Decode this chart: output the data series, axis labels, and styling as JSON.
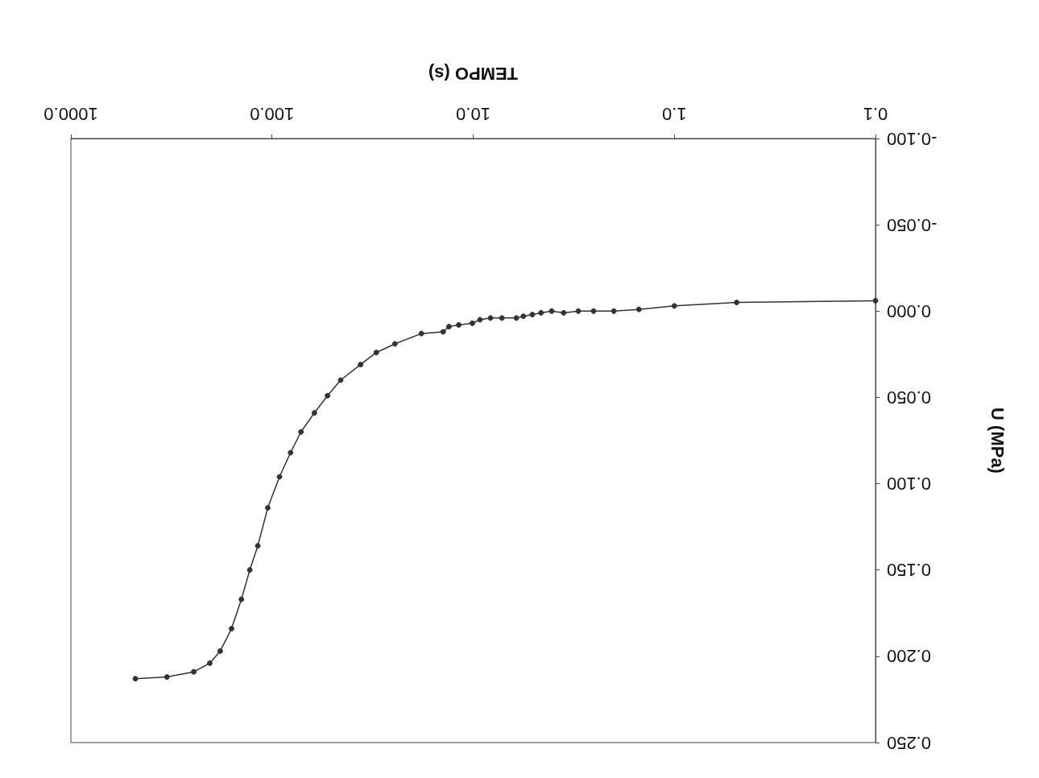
{
  "chart_data": {
    "type": "line",
    "xlabel": "TEMPO (s)",
    "ylabel": "U (MPa)",
    "log": "x",
    "xlim": [
      1000,
      0.1
    ],
    "xticks": [
      0.1,
      {
        "value": 1,
        "label": "1.0"
      },
      {
        "value": 10,
        "label": "10.0"
      },
      {
        "value": 100,
        "label": "100.0"
      },
      {
        "value": 1000,
        "label": "1000.0"
      }
    ],
    "ylim": [
      0.25,
      -0.1
    ],
    "yticks": [
      {
        "value": -0.1,
        "label": "-0.100"
      },
      {
        "value": -0.05,
        "label": "-0.050"
      },
      {
        "value": 0,
        "label": "0.000"
      },
      {
        "value": 0.05,
        "label": "0.050"
      },
      {
        "value": 0.1,
        "label": "0.100"
      },
      {
        "value": 0.15,
        "label": "0.150"
      },
      {
        "value": 0.2,
        "label": "0.200"
      },
      {
        "value": 0.25,
        "label": "0.250"
      }
    ],
    "grid": false,
    "marker": "circle",
    "line_style": "solid",
    "series": [
      {
        "color": "#333333",
        "x": [
          0.1,
          0.49,
          1.0,
          1.5,
          2.0,
          2.52,
          3.0,
          3.55,
          4.07,
          4.6,
          5.08,
          5.63,
          6.1,
          7.2,
          8.2,
          9.25,
          10.1,
          11.8,
          13.2,
          14.1,
          18.1,
          24.5,
          30.3,
          36.3,
          45.6,
          53,
          61.6,
          71.8,
          80.9,
          91.8,
          105,
          117.7,
          129,
          142,
          159,
          181,
          204,
          245,
          333,
          478
        ],
        "values": [
          -0.006,
          -0.005,
          -0.003,
          -0.001,
          0.0,
          0.0,
          0.0,
          0.001,
          0.0,
          0.001,
          0.002,
          0.003,
          0.004,
          0.004,
          0.004,
          0.005,
          0.007,
          0.008,
          0.009,
          0.012,
          0.013,
          0.019,
          0.024,
          0.031,
          0.04,
          0.049,
          0.059,
          0.07,
          0.082,
          0.096,
          0.114,
          0.136,
          0.15,
          0.167,
          0.184,
          0.197,
          0.204,
          0.209,
          0.212,
          0.213
        ]
      }
    ]
  }
}
